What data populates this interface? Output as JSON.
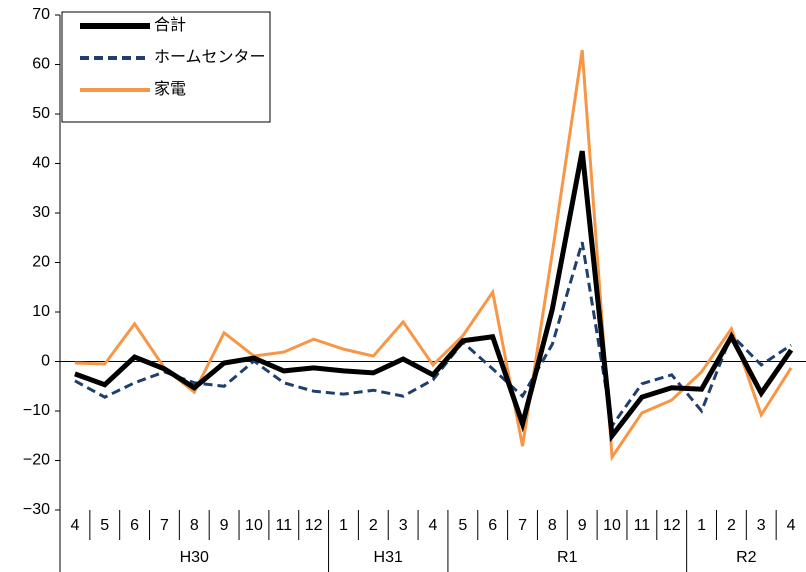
{
  "chart_data": {
    "type": "line",
    "category_groups": [
      {
        "label": "H30",
        "categories": [
          "4",
          "5",
          "6",
          "7",
          "8",
          "9",
          "10",
          "11",
          "12"
        ]
      },
      {
        "label": "H31",
        "categories": [
          "1",
          "2",
          "3",
          "4"
        ]
      },
      {
        "label": "R1",
        "categories": [
          "5",
          "6",
          "7",
          "8",
          "9",
          "10",
          "11",
          "12"
        ]
      },
      {
        "label": "R2",
        "categories": [
          "1",
          "2",
          "3",
          "4"
        ]
      }
    ],
    "series": [
      {
        "name": "合計",
        "color": "#000000",
        "dash": false,
        "width": 5,
        "values": [
          -2.5,
          -4.7,
          0.9,
          -1.5,
          -5.3,
          -0.3,
          0.7,
          -1.9,
          -1.3,
          -1.9,
          -2.3,
          0.5,
          -2.7,
          4.2,
          5.0,
          -12.6,
          10.6,
          42.5,
          -15.0,
          -7.2,
          -5.3,
          -5.6,
          5.0,
          -6.4,
          2.3
        ]
      },
      {
        "name": "ホームセンター",
        "color": "#1f3f6e",
        "dash": true,
        "width": 3,
        "values": [
          -3.9,
          -7.2,
          -4.3,
          -2.1,
          -4.3,
          -5.0,
          0.1,
          -4.3,
          -6.0,
          -6.6,
          -5.8,
          -7.0,
          -3.7,
          3.9,
          -1.5,
          -7.0,
          3.5,
          24.1,
          -13.0,
          -4.5,
          -2.7,
          -10.0,
          5.4,
          -0.7,
          3.3
        ]
      },
      {
        "name": "家電",
        "color": "#f79646",
        "dash": false,
        "width": 3,
        "values": [
          -0.3,
          -0.5,
          7.6,
          -1.3,
          -6.2,
          5.8,
          1.1,
          1.9,
          4.5,
          2.5,
          1.1,
          8.0,
          -0.7,
          5.2,
          14.0,
          -17.1,
          22.0,
          62.9,
          -19.3,
          -10.4,
          -7.8,
          -2.1,
          6.6,
          -10.8,
          -1.3
        ]
      }
    ],
    "ylim": [
      -30,
      70
    ],
    "yticks": [
      {
        "value": -30,
        "label": "−30"
      },
      {
        "value": -20,
        "label": "−20"
      },
      {
        "value": -10,
        "label": "−10"
      },
      0,
      10,
      20,
      30,
      40,
      50,
      60,
      70
    ],
    "legend": "top-left"
  }
}
